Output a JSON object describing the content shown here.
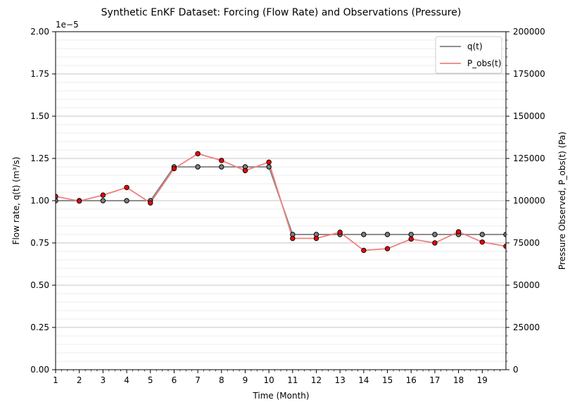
{
  "chart_data": {
    "type": "line",
    "title": "Synthetic EnKF Dataset: Forcing (Flow Rate) and Observations (Pressure)",
    "xlabel": "Time (Month)",
    "ylabel_left": "Flow rate, q(t) (m³/s)",
    "ylabel_right": "Pressure Observed, P_obs(t) (Pa)",
    "left_offset_label": "1e−5",
    "xlim": [
      1,
      20
    ],
    "ylim_left": [
      0,
      2.0
    ],
    "ylim_right": [
      0,
      200000
    ],
    "x_ticks": [
      1,
      2,
      3,
      4,
      5,
      6,
      7,
      8,
      9,
      10,
      11,
      12,
      13,
      14,
      15,
      16,
      17,
      18,
      19
    ],
    "x_tick_labels": [
      "1",
      "2",
      "3",
      "4",
      "5",
      "6",
      "7",
      "8",
      "9",
      "10",
      "11",
      "12",
      "13",
      "14",
      "15",
      "16",
      "17",
      "18",
      "19"
    ],
    "y_left_ticks": [
      0,
      0.25,
      0.5,
      0.75,
      1.0,
      1.25,
      1.5,
      1.75,
      2.0
    ],
    "y_left_tick_labels": [
      "0.00",
      "0.25",
      "0.50",
      "0.75",
      "1.00",
      "1.25",
      "1.50",
      "1.75",
      "2.00"
    ],
    "y_right_ticks": [
      0,
      25000,
      50000,
      75000,
      100000,
      125000,
      150000,
      175000,
      200000
    ],
    "y_right_tick_labels": [
      "0",
      "25000",
      "50000",
      "75000",
      "100000",
      "125000",
      "150000",
      "175000",
      "200000"
    ],
    "grid": true,
    "legend_position": "top-right",
    "series": [
      {
        "name": "q(t)",
        "axis": "left",
        "color": "#7f7f7f",
        "marker_color": "#808080",
        "x": [
          1,
          2,
          3,
          4,
          5,
          6,
          7,
          8,
          9,
          10,
          11,
          12,
          13,
          14,
          15,
          16,
          17,
          18,
          19,
          20
        ],
        "values": [
          1.0,
          1.0,
          1.0,
          1.0,
          1.0,
          1.2,
          1.2,
          1.2,
          1.2,
          1.2,
          0.8,
          0.8,
          0.8,
          0.8,
          0.8,
          0.8,
          0.8,
          0.8,
          0.8,
          0.8
        ]
      },
      {
        "name": "P_obs(t)",
        "axis": "right",
        "color": "#f08080",
        "marker_color": "#ff0000",
        "x": [
          1,
          2,
          3,
          4,
          5,
          6,
          7,
          8,
          9,
          10,
          11,
          12,
          13,
          14,
          15,
          16,
          17,
          18,
          19,
          20
        ],
        "values": [
          102500,
          99800,
          103300,
          107800,
          98700,
          119000,
          127800,
          123800,
          117800,
          122800,
          77700,
          77700,
          81300,
          70600,
          71600,
          77300,
          75000,
          81600,
          75500,
          73000
        ]
      }
    ]
  }
}
